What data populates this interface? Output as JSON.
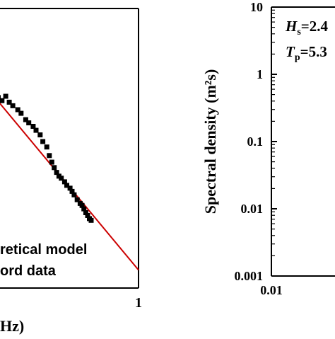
{
  "chart_data": [
    {
      "type": "line",
      "panel": "left (cropped)",
      "x_scale": "log",
      "y_scale": "log",
      "x_tick_labels": [
        "1"
      ],
      "xlabel_visible": "Hz)",
      "legend": {
        "entries": [
          {
            "label": "retical model",
            "style": "line",
            "color": "#cc0000"
          },
          {
            "label": "ord data",
            "style": "square-marker",
            "color": "#000000"
          }
        ],
        "placement": "bottom-left"
      },
      "series": [
        {
          "kind": "theoretical",
          "x": [
            0.3,
            1.0
          ],
          "y": [
            1.0,
            0.0032
          ]
        },
        {
          "kind": "record",
          "x": [
            0.305,
            0.315,
            0.325,
            0.335,
            0.345,
            0.36,
            0.37,
            0.385,
            0.395,
            0.41,
            0.42,
            0.435,
            0.445,
            0.46,
            0.47,
            0.48,
            0.49,
            0.5,
            0.51,
            0.52,
            0.535,
            0.545,
            0.56,
            0.57,
            0.58,
            0.595,
            0.61,
            0.62,
            0.63,
            0.64,
            0.65,
            0.66,
            0.67
          ],
          "y": [
            1.05,
            0.95,
            1.1,
            0.9,
            0.8,
            0.7,
            0.62,
            0.5,
            0.45,
            0.4,
            0.35,
            0.3,
            0.24,
            0.2,
            0.15,
            0.12,
            0.1,
            0.085,
            0.075,
            0.07,
            0.062,
            0.055,
            0.05,
            0.045,
            0.04,
            0.034,
            0.03,
            0.028,
            0.025,
            0.022,
            0.02,
            0.018,
            0.017
          ]
        }
      ]
    },
    {
      "type": "line",
      "panel": "right (cropped)",
      "x_scale": "log",
      "y_scale": "log",
      "ylabel": "Spectral density (m²s)",
      "y_tick_labels": [
        "10",
        "1",
        "0.1",
        "0.01",
        "0.001"
      ],
      "x_tick_labels": [
        "0.01"
      ],
      "ylim": [
        0.001,
        10
      ],
      "annotations": [
        {
          "symbol": "H",
          "subscript": "s",
          "text": "=2.4"
        },
        {
          "symbol": "T",
          "subscript": "p",
          "text": "=5.3"
        }
      ]
    }
  ]
}
